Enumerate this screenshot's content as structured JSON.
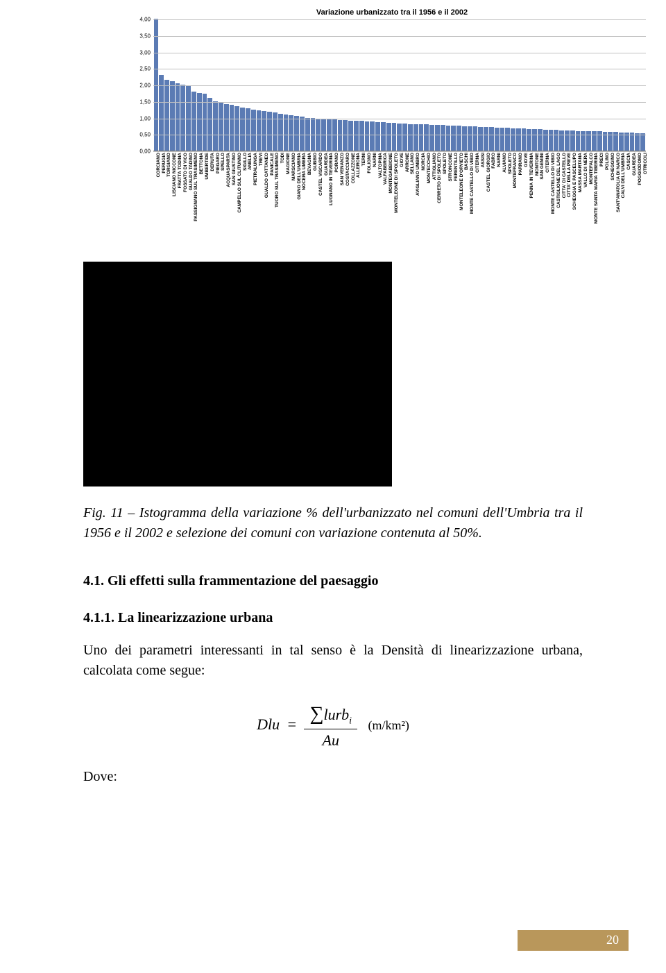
{
  "chart": {
    "type": "bar",
    "title": "Variazione urbanizzato tra il 1956 e il 2002",
    "title_fontsize": 11,
    "title_fontweight": "bold",
    "ylim": [
      0.0,
      4.0
    ],
    "ytick_step": 0.5,
    "yticks": [
      "0,00",
      "0,50",
      "1,00",
      "1,50",
      "2,00",
      "2,50",
      "3,00",
      "3,50",
      "4,00"
    ],
    "label_fontsize": 8,
    "xlabel_fontsize": 6.5,
    "bar_color": "#5b7bb4",
    "grid_color": "#c0c0c0",
    "axis_color": "#808080",
    "background_color": "#ffffff",
    "categories": [
      "CORCIANO",
      "PERUGIA",
      "TORGIANO",
      "LISCIANO NICCONE",
      "FRATTA TODINA",
      "FOSSATO DI VICO",
      "GUALDO TADINO",
      "PASSIGNANO SUL TRASIMENO",
      "BETTONA",
      "UMBERTIDE",
      "DERUTA",
      "PIEGARO",
      "SPELLO",
      "ACQUASPARTA",
      "SAN GIUSTINO",
      "CAMPELLO SUL CLITUNNO",
      "SIGILLO",
      "AMELIA",
      "PIETRALUNGA",
      "TREVI",
      "GUALDO CATTANEO",
      "PANICALE",
      "TUORO SUL TRASIMENO",
      "TODI",
      "MAGIONE",
      "MARSCIANO",
      "GIANO DELL'UMBRIA",
      "NOCERA UMBRA",
      "BEVAGNA",
      "GUBBIO",
      "CASTEL VISCARDO",
      "GUARDEA",
      "LUGNANO IN TEVERINA",
      "PORANO",
      "SAN VENANZO",
      "COSTACCIARO",
      "COLLAZZONE",
      "ALLERONA",
      "TERNI",
      "FOLIGNO",
      "NARNI",
      "VALTOPINA",
      "VALFABBRICA",
      "MONTEGABBIONE",
      "MONTELEONE DI SPOLETO",
      "GIOVE",
      "ARRONE",
      "SELLANO",
      "AVIGLIANO UMBRO",
      "NORCIA",
      "MONTECCHIO",
      "ATTIGLIANO",
      "CERRETO DI SPOLETO",
      "SPOLETO",
      "STRONCONE",
      "FERENTILLO",
      "MONTELEONE D'ORVIETO",
      "BASCHI",
      "MONTE CASTELLO DI VIBIO",
      "CITERNA",
      "ASSISI",
      "CASTEL GIORGIO",
      "FABRO",
      "NARNI",
      "ALVIANO",
      "SPOLETO",
      "MONTEFRANCO",
      "PARRANO",
      "GIOVE",
      "PENNA IN TEVERINA",
      "MONTONE",
      "SAN GEMINI",
      "CITERNA",
      "MONTE CASTELLO DI VIBIO",
      "CASTIGLIONE DEL LAGO",
      "CITTA' DI CASTELLO",
      "CITTA' DELLA PIEVE",
      "SCHEGGIA E PASCELUPO",
      "MASSA MARTANA",
      "VALLO DI NERA",
      "MONTEFALCO",
      "MONTE SANTA MARIA TIBERINA",
      "PRECI",
      "POLINO",
      "SCHEGGINO",
      "SANT'ANATOLIA DI NARCO",
      "CALVI DELL'UMBRIA",
      "CASCIA",
      "GUARDEA",
      "POGGIODOMO",
      "OTRICOLI"
    ],
    "values": [
      4.0,
      2.3,
      2.15,
      2.1,
      2.05,
      2.0,
      1.95,
      1.8,
      1.75,
      1.72,
      1.6,
      1.5,
      1.45,
      1.42,
      1.4,
      1.35,
      1.3,
      1.28,
      1.25,
      1.22,
      1.2,
      1.18,
      1.15,
      1.12,
      1.1,
      1.08,
      1.05,
      1.03,
      1.0,
      0.98,
      0.97,
      0.96,
      0.95,
      0.94,
      0.93,
      0.92,
      0.91,
      0.9,
      0.9,
      0.89,
      0.88,
      0.87,
      0.86,
      0.85,
      0.84,
      0.83,
      0.82,
      0.81,
      0.8,
      0.8,
      0.79,
      0.78,
      0.78,
      0.77,
      0.76,
      0.76,
      0.75,
      0.74,
      0.74,
      0.73,
      0.72,
      0.72,
      0.71,
      0.7,
      0.7,
      0.69,
      0.68,
      0.68,
      0.67,
      0.66,
      0.66,
      0.65,
      0.64,
      0.64,
      0.63,
      0.62,
      0.62,
      0.61,
      0.6,
      0.6,
      0.59,
      0.58,
      0.58,
      0.57,
      0.56,
      0.56,
      0.55,
      0.54,
      0.54,
      0.53,
      0.52
    ]
  },
  "caption": "Fig. 11 – Istogramma della variazione % dell'urbanizzato nel comuni dell'Umbria tra il 1956 e il 2002 e selezione dei comuni con variazione contenuta al 50%.",
  "heading1": "4.1. Gli effetti sulla frammentazione del paesaggio",
  "heading2": "4.1.1. La linearizzazione urbana",
  "paragraph": "Uno dei parametri interessanti in tal senso è la Densità di linearizzazione urbana, calcolata come segue:",
  "equation": {
    "lhs": "Dlu",
    "numerator_prefix": "∑",
    "numerator_var": "lurb",
    "numerator_sub": "i",
    "denominator": "Au",
    "unit": "(m/km²)"
  },
  "dove": "Dove:",
  "page_number": "20",
  "colors": {
    "text": "#000000",
    "page_pill": "#b9975b",
    "page_number_text": "#ffffff",
    "black_box": "#000000"
  }
}
